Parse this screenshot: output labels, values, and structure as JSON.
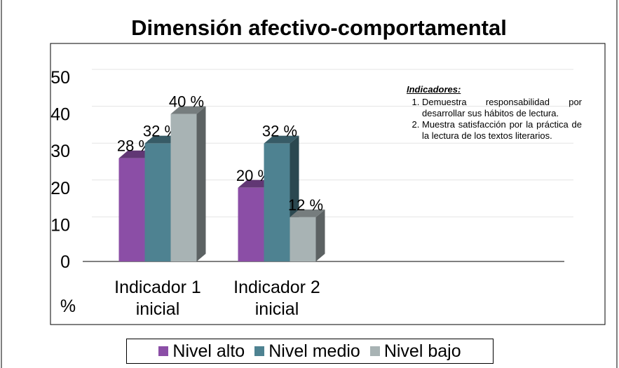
{
  "chart_data": {
    "type": "bar",
    "title": "Dimensión afectivo-comportamental",
    "y_axis_label": "%",
    "categories": [
      "Indicador 1 inicial",
      "Indicador 2 inicial"
    ],
    "series": [
      {
        "name": "Nivel alto",
        "color": "#8b4ea6",
        "values": [
          28,
          20
        ],
        "value_labels": [
          "28 %",
          "20 %"
        ]
      },
      {
        "name": "Nivel medio",
        "color": "#4e8291",
        "values": [
          32,
          32
        ],
        "value_labels": [
          "32 %",
          "32 %"
        ]
      },
      {
        "name": "Nivel bajo",
        "color": "#a8b3b4",
        "values": [
          40,
          12
        ],
        "value_labels": [
          "40 %",
          "12 %"
        ]
      }
    ],
    "ylim": [
      0,
      50
    ],
    "yticks": [
      0,
      10,
      20,
      30,
      40,
      50
    ],
    "grid": true,
    "legend": "bottom",
    "annotation": {
      "heading": "Indicadores:",
      "items": [
        "Demuestra responsabilidad por desarrollar sus hábitos de lectura.",
        "Muestra satisfacción por la práctica de la lectura de los textos literarios."
      ]
    }
  }
}
